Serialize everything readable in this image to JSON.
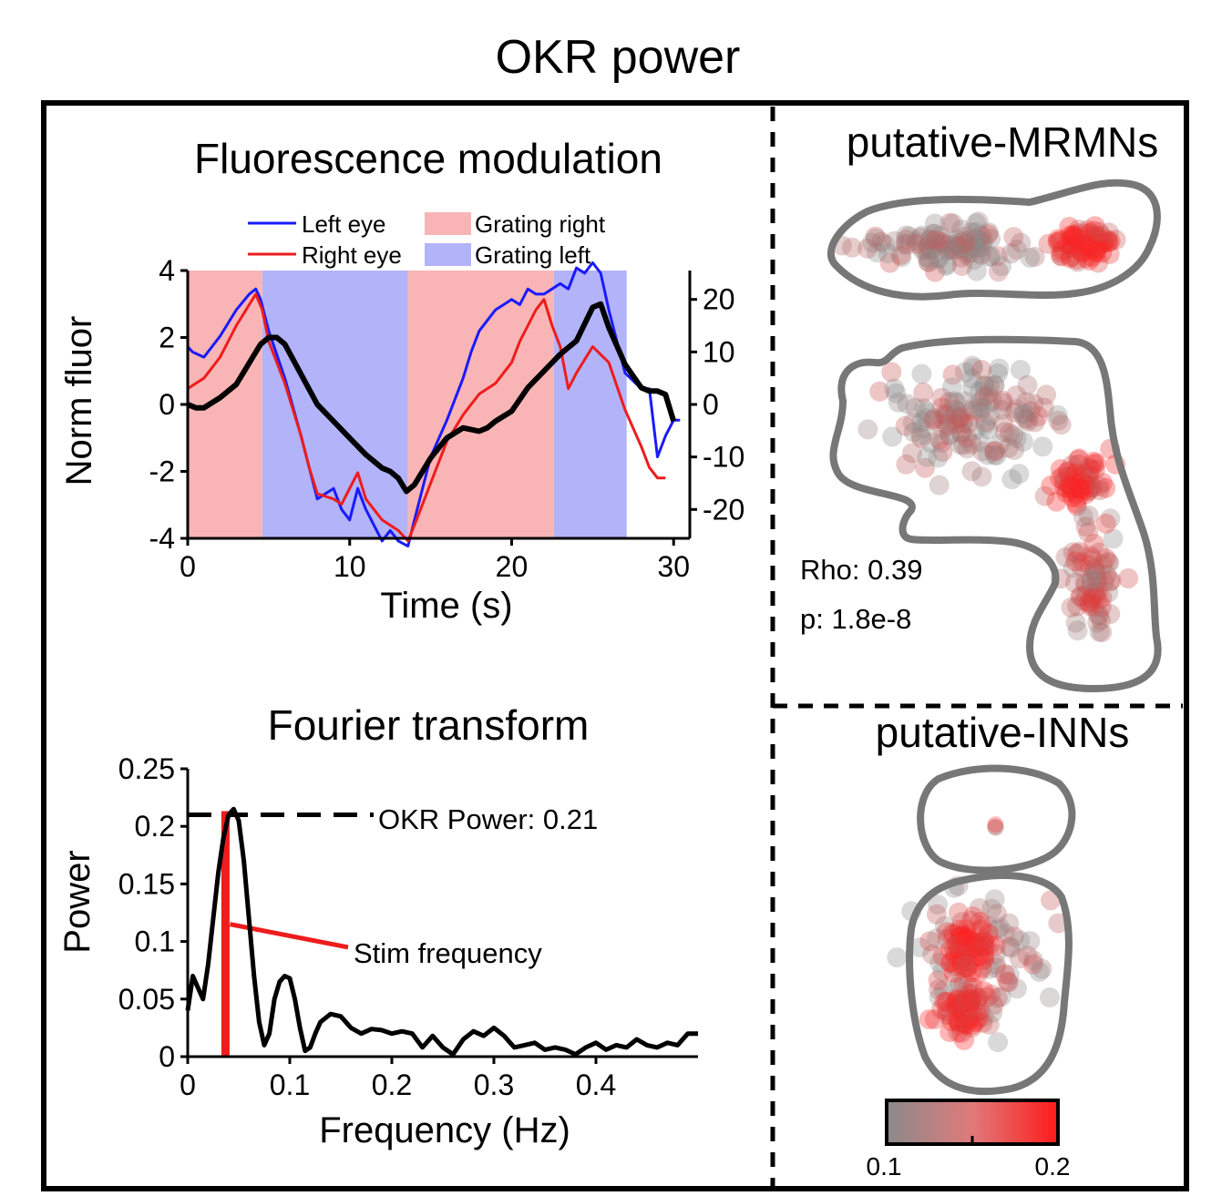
{
  "figure": {
    "title": "OKR power",
    "colors": {
      "left_eye": "#1a1aff",
      "right_eye": "#ee1c1c",
      "mean": "#000000",
      "grating_right": "#f9b5b5",
      "grating_left": "#b3b3f9",
      "outline": "#777777",
      "cell_gray": "#8c8c8c",
      "cell_red": "#ff2020"
    }
  },
  "fluorescence": {
    "title": "Fluorescence modulation",
    "legend": {
      "left_eye": "Left eye",
      "right_eye": "Right eye",
      "grating_right": "Grating right",
      "grating_left": "Grating left"
    },
    "xlabel": "Time (s)",
    "ylabel": "Norm fluor"
  },
  "fourier": {
    "title": "Fourier transform",
    "xlabel": "Frequency (Hz)",
    "ylabel": "Power",
    "okr_label": "OKR Power: 0.21",
    "stim_label": "Stim frequency"
  },
  "mrmn": {
    "title": "putative-MRMNs",
    "rho": "Rho: 0.39",
    "p": "p: 1.8e-8"
  },
  "inn": {
    "title": "putative-INNs"
  },
  "colorbar": {
    "min_label": "0.1",
    "max_label": "0.2",
    "range": [
      0.1,
      0.2
    ]
  },
  "chart_data": [
    {
      "type": "line",
      "name": "fluorescence-modulation",
      "xlim": [
        0,
        31
      ],
      "ylim": [
        -4,
        4
      ],
      "y2lim": [
        -25.5,
        25.5
      ],
      "xticks": [
        0,
        10,
        20,
        30
      ],
      "yticks": [
        -4,
        -2,
        0,
        2,
        4
      ],
      "y2ticks": [
        -20,
        -10,
        0,
        10,
        20
      ],
      "bands": [
        {
          "start": 0,
          "end": 4.6,
          "kind": "grating_right"
        },
        {
          "start": 4.6,
          "end": 13.6,
          "kind": "grating_left"
        },
        {
          "start": 13.6,
          "end": 22.6,
          "kind": "grating_right"
        },
        {
          "start": 22.6,
          "end": 27.1,
          "kind": "grating_left"
        }
      ],
      "series": [
        {
          "name": "Left eye",
          "axis": "y2",
          "x": [
            0,
            0.3,
            1,
            2,
            3,
            3.8,
            4.2,
            4.5,
            5,
            6,
            7,
            7.5,
            8,
            9,
            9.5,
            10,
            10.5,
            11,
            12,
            12.5,
            13,
            13.6,
            14,
            15,
            16,
            17,
            17.5,
            18,
            19,
            20,
            20.5,
            21,
            21.5,
            22,
            22.5,
            23,
            23.5,
            24,
            24.5,
            25,
            25.5,
            26,
            27,
            28,
            28.5,
            29,
            29.5,
            30,
            30.4
          ],
          "y": [
            11,
            10,
            9,
            13,
            18,
            21,
            22,
            20,
            14,
            5,
            -6,
            -12,
            -18,
            -16,
            -20,
            -22,
            -16,
            -20,
            -26,
            -24,
            -26,
            -27,
            -22,
            -10,
            -3,
            5,
            10,
            14,
            18,
            20,
            19,
            22,
            21,
            21,
            22,
            23,
            22,
            26,
            25,
            27,
            25,
            18,
            6,
            3,
            3,
            -10,
            -6,
            -3,
            -3
          ]
        },
        {
          "name": "Right eye",
          "axis": "y2",
          "x": [
            0,
            0.5,
            1,
            2,
            3,
            3.8,
            4.2,
            4.6,
            5,
            6,
            7,
            7.5,
            8,
            9,
            9.5,
            10,
            10.5,
            11,
            12,
            13,
            13.6,
            14,
            15,
            16,
            17,
            18,
            19,
            20,
            20.5,
            21,
            21.5,
            22,
            22.5,
            23,
            23.5,
            24,
            25,
            26,
            27,
            28,
            28.5,
            29,
            29.5
          ],
          "y": [
            3,
            4,
            5,
            9,
            15,
            19,
            21,
            18,
            12,
            4,
            -6,
            -12,
            -17,
            -18,
            -19,
            -16,
            -13,
            -18,
            -22,
            -24,
            -26,
            -23,
            -15,
            -7,
            -2,
            2,
            4,
            8,
            12,
            15,
            18,
            20,
            15,
            11,
            3,
            6,
            11,
            8,
            -1,
            -8,
            -12,
            -14,
            -14
          ]
        },
        {
          "name": "Mean",
          "axis": "y",
          "x": [
            0,
            0.5,
            1,
            2,
            3,
            3.5,
            4,
            4.5,
            5,
            5.5,
            6,
            7,
            8,
            9,
            10,
            11,
            12,
            12.5,
            13,
            13.5,
            14,
            15,
            16,
            17,
            18,
            18.5,
            19,
            20,
            21,
            22,
            23,
            23.5,
            24,
            24.5,
            25,
            25.5,
            26,
            27,
            28,
            28.5,
            29,
            29.5,
            30
          ],
          "y": [
            0,
            -0.1,
            -0.1,
            0.2,
            0.6,
            1.0,
            1.4,
            1.8,
            2.0,
            2.0,
            1.8,
            0.9,
            0,
            -0.5,
            -1,
            -1.5,
            -1.9,
            -2.0,
            -2.2,
            -2.6,
            -2.4,
            -1.6,
            -1.0,
            -0.7,
            -0.8,
            -0.7,
            -0.5,
            -0.2,
            0.5,
            1.0,
            1.5,
            1.7,
            1.9,
            2.4,
            2.9,
            3.0,
            2.3,
            1.2,
            0.5,
            0.4,
            0.4,
            0.3,
            -0.5
          ]
        }
      ]
    },
    {
      "type": "line",
      "name": "fourier-transform",
      "xlim": [
        0,
        0.5
      ],
      "ylim": [
        0,
        0.25
      ],
      "xticks": [
        0,
        0.1,
        0.2,
        0.3,
        0.4
      ],
      "yticks": [
        0,
        0.05,
        0.1,
        0.15,
        0.2,
        0.25
      ],
      "okr_power": 0.21,
      "stim_frequency": 0.037,
      "series": [
        {
          "name": "Power",
          "x": [
            0,
            0.005,
            0.01,
            0.015,
            0.02,
            0.025,
            0.03,
            0.035,
            0.04,
            0.045,
            0.05,
            0.055,
            0.06,
            0.065,
            0.07,
            0.075,
            0.08,
            0.085,
            0.09,
            0.095,
            0.1,
            0.105,
            0.11,
            0.115,
            0.12,
            0.125,
            0.13,
            0.14,
            0.15,
            0.16,
            0.17,
            0.18,
            0.19,
            0.2,
            0.21,
            0.22,
            0.23,
            0.24,
            0.25,
            0.26,
            0.27,
            0.28,
            0.29,
            0.3,
            0.31,
            0.32,
            0.33,
            0.34,
            0.35,
            0.36,
            0.37,
            0.38,
            0.39,
            0.4,
            0.41,
            0.42,
            0.43,
            0.44,
            0.45,
            0.46,
            0.47,
            0.48,
            0.49,
            0.5
          ],
          "y": [
            0.04,
            0.07,
            0.06,
            0.05,
            0.08,
            0.12,
            0.16,
            0.19,
            0.21,
            0.215,
            0.205,
            0.17,
            0.12,
            0.07,
            0.03,
            0.01,
            0.02,
            0.05,
            0.065,
            0.07,
            0.068,
            0.05,
            0.025,
            0.005,
            0.008,
            0.02,
            0.03,
            0.037,
            0.035,
            0.025,
            0.02,
            0.024,
            0.023,
            0.02,
            0.022,
            0.02,
            0.008,
            0.018,
            0.008,
            0.002,
            0.015,
            0.022,
            0.018,
            0.025,
            0.018,
            0.008,
            0.01,
            0.012,
            0.006,
            0.008,
            0.006,
            0.002,
            0.008,
            0.012,
            0.006,
            0.01,
            0.008,
            0.015,
            0.01,
            0.008,
            0.012,
            0.01,
            0.02,
            0.02
          ]
        }
      ]
    }
  ]
}
